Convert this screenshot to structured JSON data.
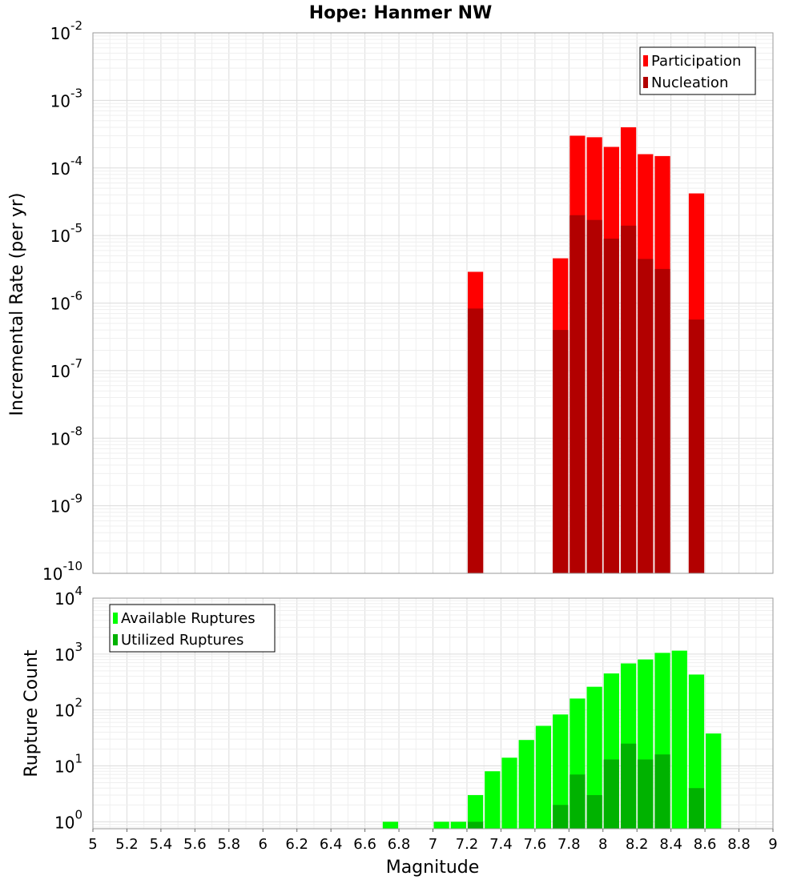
{
  "chart_data": [
    {
      "type": "bar",
      "title": "Hope: Hanmer NW",
      "xlabel": "Magnitude",
      "ylabel": "Incremental Rate (per yr)",
      "yscale": "log",
      "ylim": [
        1e-10,
        0.01
      ],
      "xlim": [
        5,
        9
      ],
      "bin_width": 0.1,
      "legend_position": "top-right",
      "ytick_exponents": [
        "-2",
        "-3",
        "-4",
        "-5",
        "-6",
        "-7",
        "-8",
        "-9",
        "-10"
      ],
      "series": [
        {
          "name": "Participation",
          "color": "#ff0000",
          "x": [
            7.25,
            7.75,
            7.85,
            7.95,
            8.05,
            8.15,
            8.25,
            8.35,
            8.55
          ],
          "values": [
            2.9e-06,
            4.6e-06,
            0.0003,
            0.000285,
            0.000205,
            0.0004,
            0.00016,
            0.00015,
            4.2e-05
          ]
        },
        {
          "name": "Nucleation",
          "color": "#b20000",
          "x": [
            7.25,
            7.75,
            7.85,
            7.95,
            8.05,
            8.15,
            8.25,
            8.35,
            8.55
          ],
          "values": [
            8.3e-07,
            4e-07,
            2e-05,
            1.7e-05,
            9e-06,
            1.4e-05,
            4.5e-06,
            3.2e-06,
            5.7e-07
          ]
        }
      ]
    },
    {
      "type": "bar",
      "title": "",
      "xlabel": "Magnitude",
      "ylabel": "Rupture Count",
      "yscale": "log",
      "ylim": [
        0.75,
        10000
      ],
      "xlim": [
        5,
        9
      ],
      "bin_width": 0.1,
      "legend_position": "top-left",
      "xticks": [
        "5",
        "5.2",
        "5.4",
        "5.6",
        "5.8",
        "6",
        "6.2",
        "6.4",
        "6.6",
        "6.8",
        "7",
        "7.2",
        "7.4",
        "7.6",
        "7.8",
        "8",
        "8.2",
        "8.4",
        "8.6",
        "8.8",
        "9"
      ],
      "ytick_exponents": [
        "0",
        "1",
        "2",
        "3",
        "4"
      ],
      "series": [
        {
          "name": "Available Ruptures",
          "color": "#00ff00",
          "x": [
            6.75,
            7.05,
            7.15,
            7.25,
            7.35,
            7.45,
            7.55,
            7.65,
            7.75,
            7.85,
            7.95,
            8.05,
            8.15,
            8.25,
            8.35,
            8.45,
            8.55,
            8.65
          ],
          "values": [
            1,
            1,
            1,
            3,
            8,
            14,
            29,
            52,
            83,
            160,
            260,
            450,
            680,
            800,
            1050,
            1150,
            430,
            38
          ]
        },
        {
          "name": "Utilized Ruptures",
          "color": "#00b200",
          "x": [
            7.25,
            7.75,
            7.85,
            7.95,
            8.05,
            8.15,
            8.25,
            8.35,
            8.55
          ],
          "values": [
            1,
            2,
            7,
            3,
            13,
            25,
            13,
            16,
            4
          ]
        }
      ]
    }
  ]
}
